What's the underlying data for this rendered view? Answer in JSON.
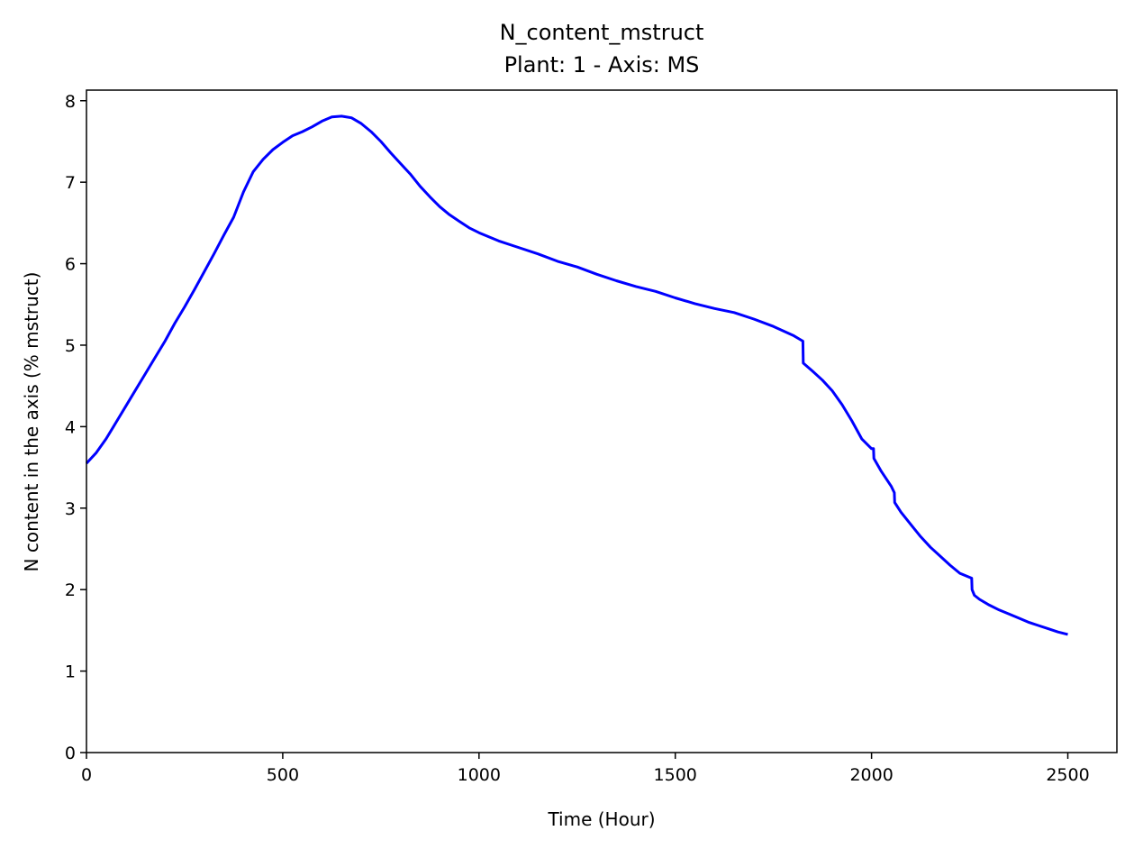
{
  "chart_data": {
    "type": "line",
    "title": "N_content_mstruct",
    "subtitle": "Plant: 1 - Axis: MS",
    "xlabel": "Time (Hour)",
    "ylabel": "N content in the axis (% mstruct)",
    "xlim": [
      0,
      2625
    ],
    "ylim": [
      0,
      8.13
    ],
    "xticks": [
      0,
      500,
      1000,
      1500,
      2000,
      2500
    ],
    "yticks": [
      0,
      1,
      2,
      3,
      4,
      5,
      6,
      7,
      8
    ],
    "grid": false,
    "series": [
      {
        "color": "#0000ff",
        "x": [
          0,
          25,
          50,
          75,
          100,
          125,
          150,
          175,
          200,
          225,
          250,
          275,
          300,
          325,
          350,
          375,
          400,
          425,
          450,
          475,
          500,
          525,
          550,
          575,
          600,
          625,
          650,
          675,
          700,
          725,
          750,
          775,
          800,
          825,
          850,
          875,
          900,
          925,
          950,
          975,
          1000,
          1050,
          1100,
          1150,
          1200,
          1250,
          1300,
          1350,
          1400,
          1450,
          1500,
          1550,
          1600,
          1650,
          1700,
          1750,
          1800,
          1825,
          1826,
          1850,
          1875,
          1900,
          1925,
          1950,
          1975,
          2000,
          2005,
          2006,
          2025,
          2050,
          2058,
          2059,
          2075,
          2100,
          2125,
          2150,
          2175,
          2200,
          2225,
          2250,
          2255,
          2256,
          2262,
          2275,
          2300,
          2325,
          2350,
          2375,
          2400,
          2425,
          2450,
          2475,
          2500
        ],
        "y": [
          3.55,
          3.68,
          3.85,
          4.05,
          4.25,
          4.45,
          4.65,
          4.85,
          5.05,
          5.27,
          5.47,
          5.68,
          5.9,
          6.12,
          6.35,
          6.57,
          6.88,
          7.13,
          7.28,
          7.4,
          7.49,
          7.57,
          7.62,
          7.68,
          7.75,
          7.8,
          7.81,
          7.79,
          7.72,
          7.62,
          7.5,
          7.36,
          7.23,
          7.1,
          6.95,
          6.82,
          6.7,
          6.6,
          6.52,
          6.44,
          6.38,
          6.28,
          6.2,
          6.12,
          6.03,
          5.96,
          5.87,
          5.79,
          5.72,
          5.66,
          5.58,
          5.51,
          5.45,
          5.4,
          5.32,
          5.23,
          5.12,
          5.05,
          4.78,
          4.68,
          4.57,
          4.44,
          4.27,
          4.07,
          3.85,
          3.73,
          3.73,
          3.61,
          3.45,
          3.27,
          3.19,
          3.07,
          2.95,
          2.8,
          2.65,
          2.52,
          2.41,
          2.3,
          2.2,
          2.15,
          2.14,
          2.0,
          1.93,
          1.88,
          1.81,
          1.75,
          1.7,
          1.65,
          1.6,
          1.56,
          1.52,
          1.48,
          1.45
        ]
      }
    ]
  }
}
